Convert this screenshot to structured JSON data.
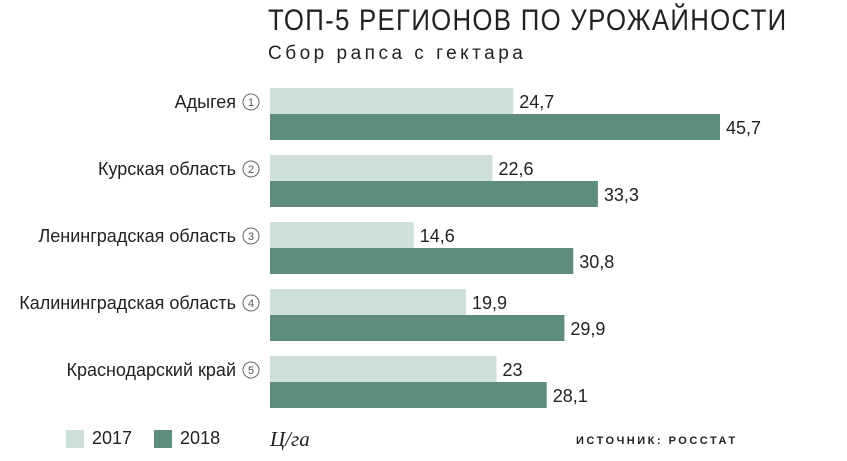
{
  "title": "ТОП-5 РЕГИОНОВ ПО УРОЖАЙНОСТИ",
  "subtitle": "Сбор рапса с гектара",
  "unit": "Ц/га",
  "source": "ИСТОЧНИК: РОССТАТ",
  "colors": {
    "series_2017": "#cfdfda",
    "series_2018": "#5e8c7d"
  },
  "chart_data": {
    "type": "bar",
    "orientation": "horizontal",
    "title": "ТОП-5 РЕГИОНОВ ПО УРОЖАЙНОСТИ",
    "subtitle": "Сбор рапса с гектара",
    "categories": [
      "Адыгея",
      "Курская область",
      "Ленинградская область",
      "Калининградская область",
      "Краснодарский край"
    ],
    "ranks": [
      "1",
      "2",
      "3",
      "4",
      "5"
    ],
    "series": [
      {
        "name": "2017",
        "values": [
          24.7,
          22.6,
          14.6,
          19.9,
          23
        ],
        "labels": [
          "24,7",
          "22,6",
          "14,6",
          "19,9",
          "23"
        ]
      },
      {
        "name": "2018",
        "values": [
          45.7,
          33.3,
          30.8,
          29.9,
          28.1
        ],
        "labels": [
          "45,7",
          "33,3",
          "30,8",
          "29,9",
          "28,1"
        ]
      }
    ],
    "xlim": [
      0,
      45.7
    ],
    "legend": "bottom-left",
    "grid": false
  }
}
